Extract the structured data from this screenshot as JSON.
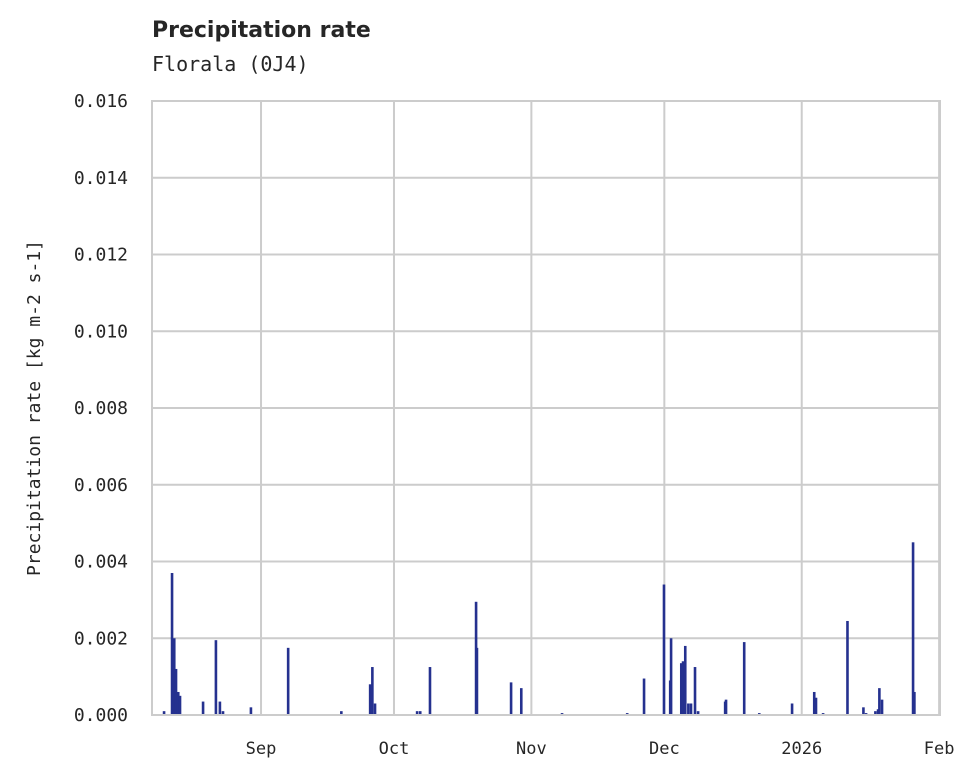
{
  "chart_data": {
    "type": "bar",
    "title": "Precipitation rate",
    "subtitle": "Florala (0J4)",
    "xlabel": "",
    "ylabel": "Precipitation rate [kg m-2 s-1]",
    "x_unit": "days since 2025-08-01",
    "xlim": [
      6.4,
      184.2
    ],
    "ylim": [
      0,
      0.016
    ],
    "grid": true,
    "color": "#25318f",
    "yticks": [
      0,
      0.002,
      0.004,
      0.006,
      0.008,
      0.01,
      0.012,
      0.014,
      0.016
    ],
    "ytick_labels": [
      "0.000",
      "0.002",
      "0.004",
      "0.006",
      "0.008",
      "0.010",
      "0.012",
      "0.014",
      "0.016"
    ],
    "xticks": [
      31,
      61,
      92,
      122,
      153,
      184
    ],
    "xtick_labels": [
      "Sep",
      "Oct",
      "Nov",
      "Dec",
      "2026",
      "Feb"
    ],
    "x": [
      9.1,
      10.9,
      11.4,
      11.8,
      12.3,
      12.7,
      17.9,
      20.8,
      21.7,
      22.4,
      28.7,
      37.1,
      49.1,
      55.6,
      56.1,
      56.7,
      66.2,
      66.9,
      69.1,
      79.5,
      79.7,
      87.4,
      89.7,
      98.9,
      113.6,
      117.4,
      121.9,
      123.3,
      123.5,
      125.8,
      126.2,
      126.7,
      127.4,
      128.0,
      128.9,
      129.6,
      135.7,
      135.9,
      140.0,
      143.4,
      150.8,
      155.8,
      156.2,
      157.8,
      163.3,
      166.9,
      167.5,
      169.6,
      170.2,
      170.5,
      171.1,
      178.1,
      178.4
    ],
    "values": [
      0.0001,
      0.0037,
      0.002,
      0.0012,
      0.0006,
      0.0005,
      0.00035,
      0.00195,
      0.00035,
      0.0001,
      0.0002,
      0.00175,
      0.0001,
      0.0008,
      0.00125,
      0.0003,
      0.0001,
      0.0001,
      0.00125,
      0.00295,
      0.00175,
      0.00085,
      0.0007,
      5e-05,
      5e-05,
      0.00095,
      0.0034,
      0.0009,
      0.002,
      0.00135,
      0.0014,
      0.0018,
      0.0003,
      0.0003,
      0.00125,
      0.0001,
      0.00035,
      0.0004,
      0.0019,
      5e-05,
      0.0003,
      0.0006,
      0.00045,
      5e-05,
      0.00245,
      0.0002,
      5e-05,
      0.0001,
      0.00015,
      0.0007,
      0.0004,
      0.0045,
      0.0006
    ]
  }
}
